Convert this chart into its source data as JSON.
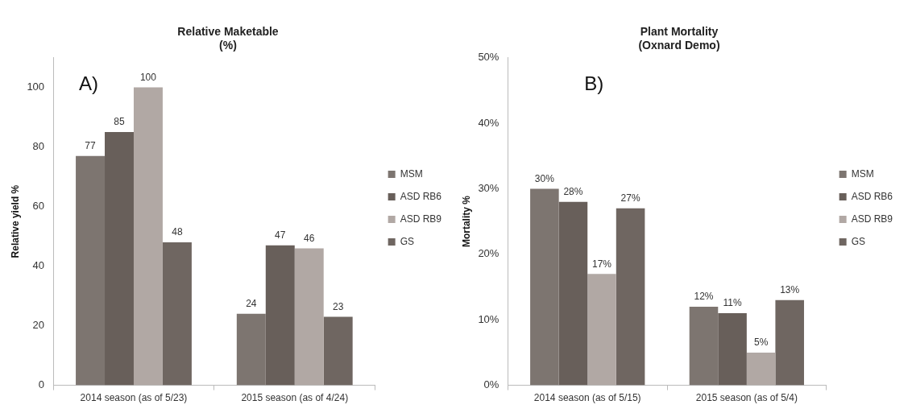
{
  "chart_data": [
    {
      "type": "bar",
      "title": "Relative Maketable\n(%)",
      "ylabel": "Relative yield %",
      "annotations": [
        "A)"
      ],
      "categories": [
        "2014 season (as of 5/23)",
        "2015 season (as of 4/24)"
      ],
      "series": [
        {
          "name": "MSM",
          "color": "#7d7570",
          "values": [
            77,
            24
          ]
        },
        {
          "name": "ASD RB6",
          "color": "#685f5a",
          "values": [
            85,
            47
          ]
        },
        {
          "name": "ASD RB9",
          "color": "#b1a8a4",
          "values": [
            100,
            46
          ]
        },
        {
          "name": "GS",
          "color": "#6f6661",
          "values": [
            48,
            23
          ]
        }
      ],
      "ylim": [
        0,
        110
      ],
      "yticks": [
        0,
        20,
        40,
        60,
        80,
        100
      ],
      "data_labels": true,
      "legend": "right"
    },
    {
      "type": "bar",
      "title": "Plant Mortality\n(Oxnard Demo)",
      "ylabel": "Mortality %",
      "annotations": [
        "B)"
      ],
      "categories": [
        "2014 season (as of 5/15)",
        "2015 season (as of 5/4)"
      ],
      "series": [
        {
          "name": "MSM",
          "color": "#7d7570",
          "values": [
            30,
            12
          ],
          "value_labels": [
            "30%",
            "12%"
          ]
        },
        {
          "name": "ASD RB6",
          "color": "#685f5a",
          "values": [
            28,
            11
          ],
          "value_labels": [
            "28%",
            "11%"
          ]
        },
        {
          "name": "ASD RB9",
          "color": "#b1a8a4",
          "values": [
            17,
            5
          ],
          "value_labels": [
            "17%",
            "5%"
          ]
        },
        {
          "name": "GS",
          "color": "#6f6661",
          "values": [
            27,
            13
          ],
          "value_labels": [
            "27%",
            "13%"
          ]
        }
      ],
      "ylim": [
        0,
        50
      ],
      "yticks": [
        {
          "value": 0,
          "label": "0%"
        },
        {
          "value": 10,
          "label": "10%"
        },
        {
          "value": 20,
          "label": "20%"
        },
        {
          "value": 30,
          "label": "30%"
        },
        {
          "value": 40,
          "label": "40%"
        },
        {
          "value": 50,
          "label": "50%"
        }
      ],
      "legend": "right"
    }
  ]
}
